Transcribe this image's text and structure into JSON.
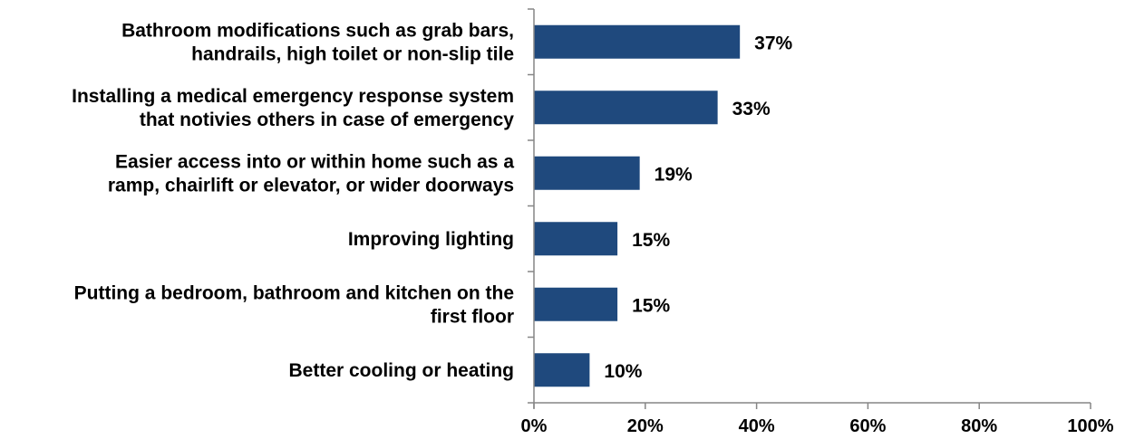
{
  "chart_data": {
    "type": "bar",
    "orientation": "horizontal",
    "categories": [
      [
        "Bathroom modifications such as grab bars,",
        "handrails, high toilet or non-slip tile"
      ],
      [
        "Installing a medical emergency response system",
        "that notivies others in case of emergency"
      ],
      [
        "Easier access into or within home such as a",
        "ramp, chairlift or elevator, or wider doorways"
      ],
      [
        "Improving lighting"
      ],
      [
        "Putting a bedroom, bathroom and kitchen on the",
        "first floor"
      ],
      [
        "Better cooling or heating"
      ]
    ],
    "values": [
      37,
      33,
      19,
      15,
      15,
      10
    ],
    "value_labels": [
      "37%",
      "33%",
      "19%",
      "15%",
      "15%",
      "10%"
    ],
    "xlim": [
      0,
      100
    ],
    "x_ticks": [
      0,
      20,
      40,
      60,
      80,
      100
    ],
    "x_tick_labels": [
      "0%",
      "20%",
      "40%",
      "60%",
      "80%",
      "100%"
    ],
    "bar_color": "#1F497D",
    "grid": false,
    "legend": "none"
  }
}
